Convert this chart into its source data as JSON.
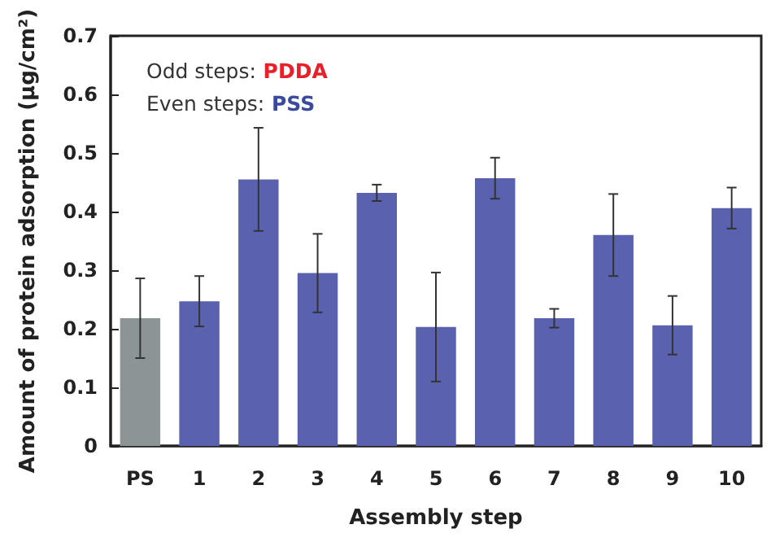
{
  "chart_data": {
    "type": "bar",
    "xlabel": "Assembly step",
    "ylabel": "Amount of protein adsorption (μg/cm²)",
    "categories": [
      "PS",
      "1",
      "2",
      "3",
      "4",
      "5",
      "6",
      "7",
      "8",
      "9",
      "10"
    ],
    "values": [
      0.218,
      0.247,
      0.455,
      0.295,
      0.432,
      0.203,
      0.457,
      0.218,
      0.36,
      0.206,
      0.406
    ],
    "errors": [
      0.068,
      0.043,
      0.088,
      0.067,
      0.014,
      0.093,
      0.035,
      0.016,
      0.07,
      0.05,
      0.035
    ],
    "colors": [
      "#8c9496",
      "#5a62b0",
      "#5a62b0",
      "#5a62b0",
      "#5a62b0",
      "#5a62b0",
      "#5a62b0",
      "#5a62b0",
      "#5a62b0",
      "#5a62b0",
      "#5a62b0"
    ],
    "ylim": [
      0,
      0.7
    ],
    "yticks": [
      0,
      0.1,
      0.2,
      0.3,
      0.4,
      0.5,
      0.6,
      0.7
    ],
    "grid": false,
    "annotations": [
      "Odd steps: PDDA",
      "Even steps: PSS"
    ]
  }
}
